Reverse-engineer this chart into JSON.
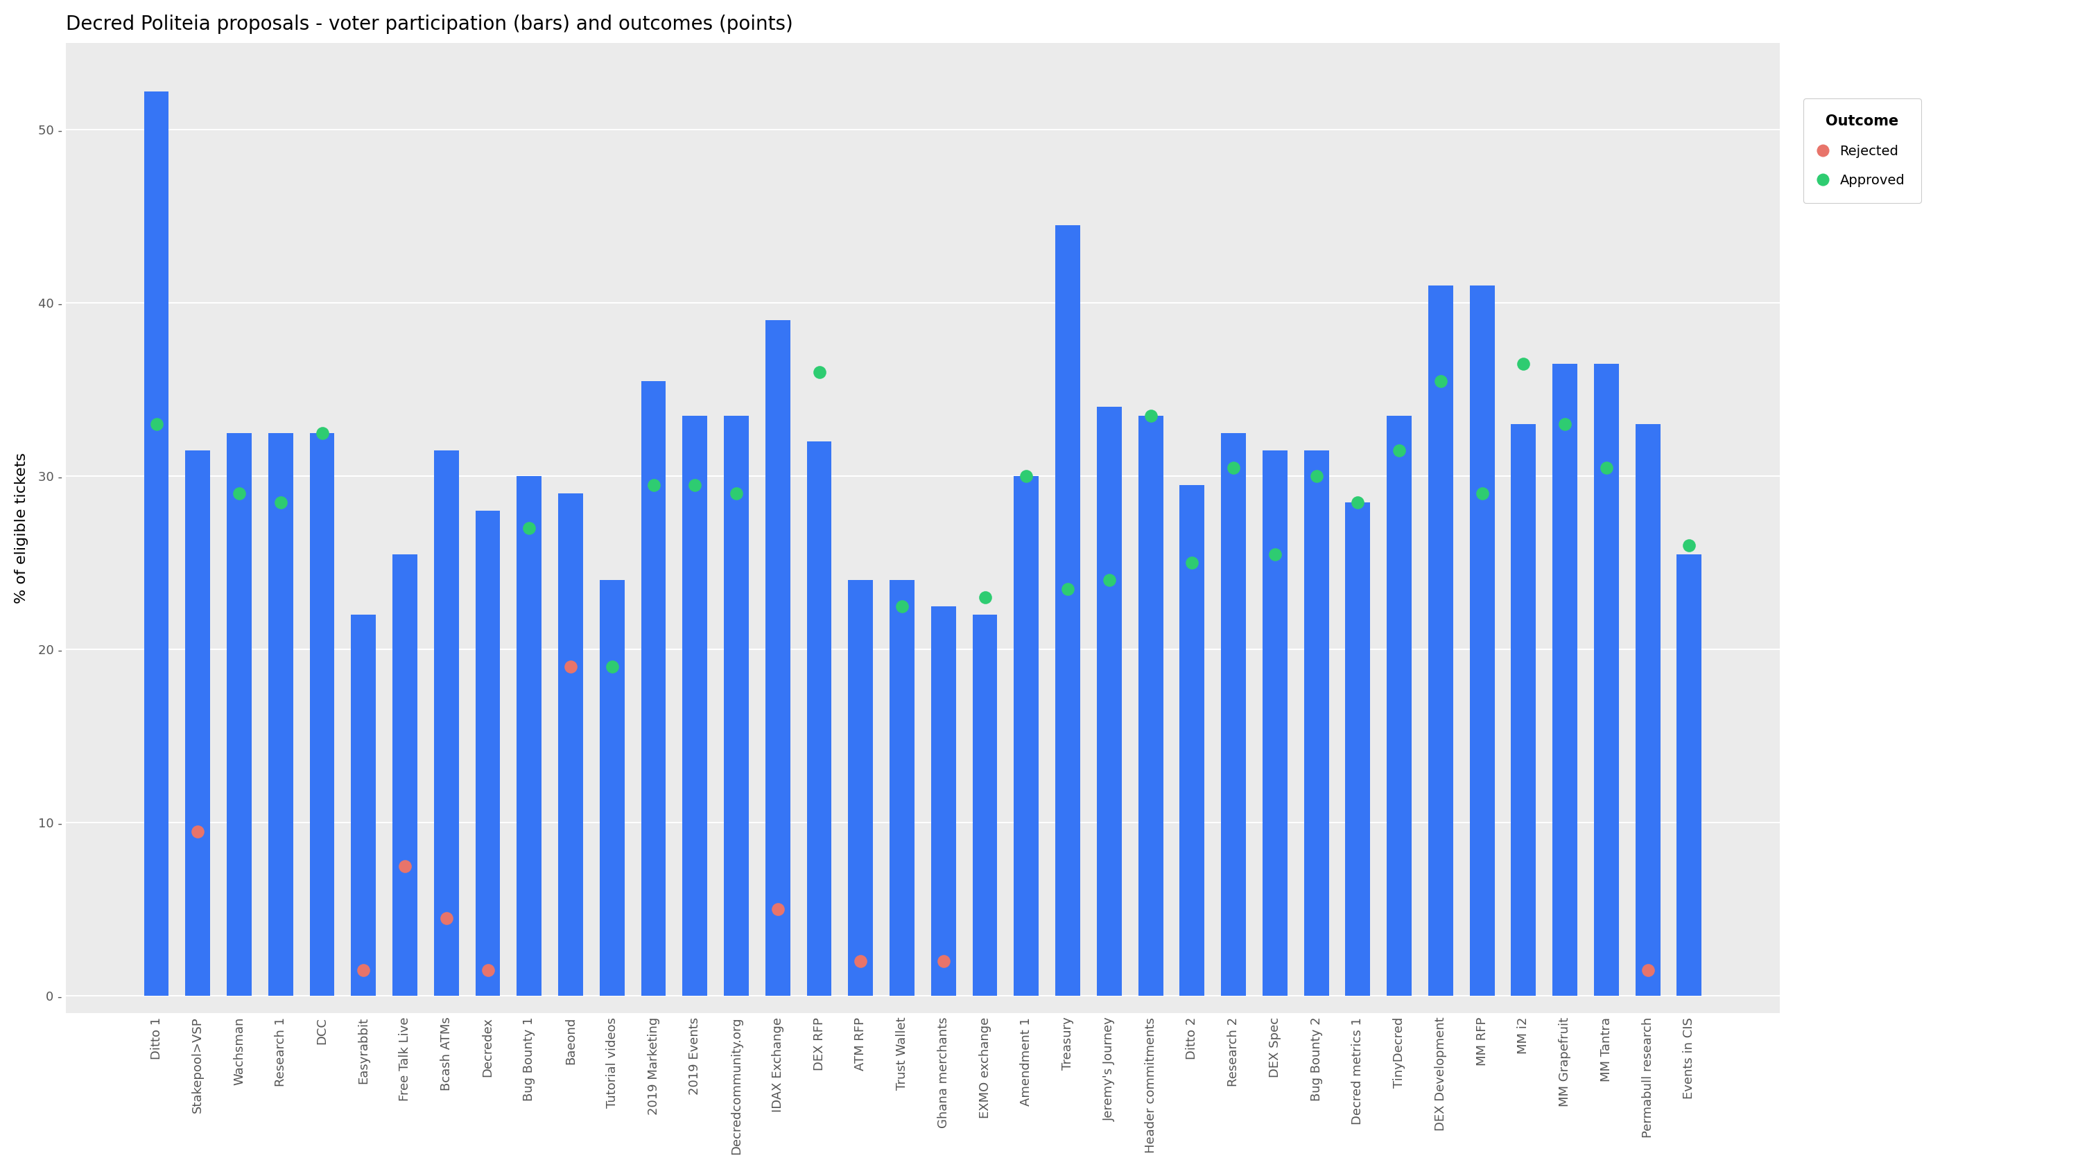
{
  "title": "Decred Politeia proposals - voter participation (bars) and outcomes (points)",
  "ylabel": "% of eligible tickets",
  "bar_color": "#3675F5",
  "background_color": "#EBEBEB",
  "grid_color": "white",
  "proposals": [
    {
      "name": "Ditto 1",
      "bar": 52.2,
      "dot": 33.0,
      "outcome": "Approved"
    },
    {
      "name": "Stakepool>VSP",
      "bar": 31.5,
      "dot": 9.5,
      "outcome": "Rejected"
    },
    {
      "name": "Wachsman",
      "bar": 32.5,
      "dot": 29.0,
      "outcome": "Approved"
    },
    {
      "name": "Research 1",
      "bar": 32.5,
      "dot": 28.5,
      "outcome": "Approved"
    },
    {
      "name": "DCC",
      "bar": 32.5,
      "dot": 32.5,
      "outcome": "Approved"
    },
    {
      "name": "Easyrabbit",
      "bar": 22.0,
      "dot": 1.5,
      "outcome": "Rejected"
    },
    {
      "name": "Free Talk Live",
      "bar": 25.5,
      "dot": 7.5,
      "outcome": "Rejected"
    },
    {
      "name": "Bcash ATMs",
      "bar": 31.5,
      "dot": 4.5,
      "outcome": "Rejected"
    },
    {
      "name": "Decredex",
      "bar": 28.0,
      "dot": 1.5,
      "outcome": "Rejected"
    },
    {
      "name": "Bug Bounty 1",
      "bar": 30.0,
      "dot": 27.0,
      "outcome": "Approved"
    },
    {
      "name": "Baeond",
      "bar": 29.0,
      "dot": 19.0,
      "outcome": "Rejected"
    },
    {
      "name": "Tutorial videos",
      "bar": 24.0,
      "dot": 19.0,
      "outcome": "Approved"
    },
    {
      "name": "2019 Marketing",
      "bar": 35.5,
      "dot": 29.5,
      "outcome": "Approved"
    },
    {
      "name": "2019 Events",
      "bar": 33.5,
      "dot": 29.5,
      "outcome": "Approved"
    },
    {
      "name": "Decredcommunity.org",
      "bar": 33.5,
      "dot": 29.0,
      "outcome": "Approved"
    },
    {
      "name": "IDAX Exchange",
      "bar": 39.0,
      "dot": 5.0,
      "outcome": "Rejected"
    },
    {
      "name": "DEX RFP",
      "bar": 32.0,
      "dot": 36.0,
      "outcome": "Approved"
    },
    {
      "name": "ATM RFP",
      "bar": 24.0,
      "dot": 2.0,
      "outcome": "Rejected"
    },
    {
      "name": "Trust Wallet",
      "bar": 24.0,
      "dot": 22.5,
      "outcome": "Approved"
    },
    {
      "name": "Ghana merchants",
      "bar": 22.5,
      "dot": 2.0,
      "outcome": "Rejected"
    },
    {
      "name": "EXMO exchange",
      "bar": 22.0,
      "dot": 23.0,
      "outcome": "Approved"
    },
    {
      "name": "Amendment 1",
      "bar": 30.0,
      "dot": 30.0,
      "outcome": "Approved"
    },
    {
      "name": "Treasury",
      "bar": 44.5,
      "dot": 23.5,
      "outcome": "Approved"
    },
    {
      "name": "Jeremy's Journey",
      "bar": 34.0,
      "dot": 24.0,
      "outcome": "Approved"
    },
    {
      "name": "Header commitments",
      "bar": 33.5,
      "dot": 33.5,
      "outcome": "Approved"
    },
    {
      "name": "Ditto 2",
      "bar": 29.5,
      "dot": 25.0,
      "outcome": "Approved"
    },
    {
      "name": "Research 2",
      "bar": 32.5,
      "dot": 30.5,
      "outcome": "Approved"
    },
    {
      "name": "DEX Spec",
      "bar": 31.5,
      "dot": 25.5,
      "outcome": "Approved"
    },
    {
      "name": "Bug Bounty 2",
      "bar": 31.5,
      "dot": 30.0,
      "outcome": "Approved"
    },
    {
      "name": "Decred metrics 1",
      "bar": 28.5,
      "dot": 28.5,
      "outcome": "Approved"
    },
    {
      "name": "TinyDecred",
      "bar": 33.5,
      "dot": 31.5,
      "outcome": "Approved"
    },
    {
      "name": "DEX Development",
      "bar": 41.0,
      "dot": 35.5,
      "outcome": "Approved"
    },
    {
      "name": "MM RFP",
      "bar": 41.0,
      "dot": 29.0,
      "outcome": "Approved"
    },
    {
      "name": "MM i2",
      "bar": 33.0,
      "dot": 36.5,
      "outcome": "Approved"
    },
    {
      "name": "MM Grapefruit",
      "bar": 36.5,
      "dot": 33.0,
      "outcome": "Approved"
    },
    {
      "name": "MM Tantra",
      "bar": 36.5,
      "dot": 30.5,
      "outcome": "Approved"
    },
    {
      "name": "Permabull research",
      "bar": 33.0,
      "dot": 1.5,
      "outcome": "Rejected"
    },
    {
      "name": "Events in CIS",
      "bar": 25.5,
      "dot": 26.0,
      "outcome": "Approved"
    }
  ],
  "approved_color": "#2ECC71",
  "rejected_color": "#E8746A",
  "dot_size": 180,
  "ylim": [
    -1,
    55
  ],
  "yticks": [
    0,
    10,
    20,
    30,
    40,
    50
  ],
  "ytick_labels": [
    "0 -",
    "10 -",
    "20 -",
    "30 -",
    "40 -",
    "50 -"
  ],
  "legend_title": "Outcome",
  "title_fontsize": 20,
  "axis_label_fontsize": 16,
  "tick_fontsize": 13
}
